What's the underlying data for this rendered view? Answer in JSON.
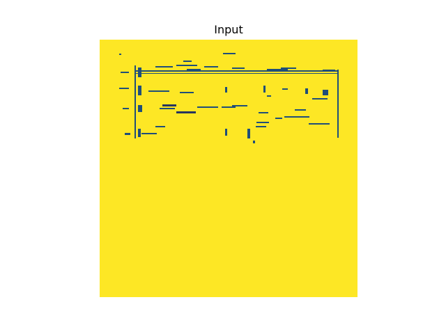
{
  "figure": {
    "title": "Input",
    "colormap": {
      "background": "#fde725",
      "foreground": "#1f4e79",
      "dark": "#27345f"
    }
  }
}
